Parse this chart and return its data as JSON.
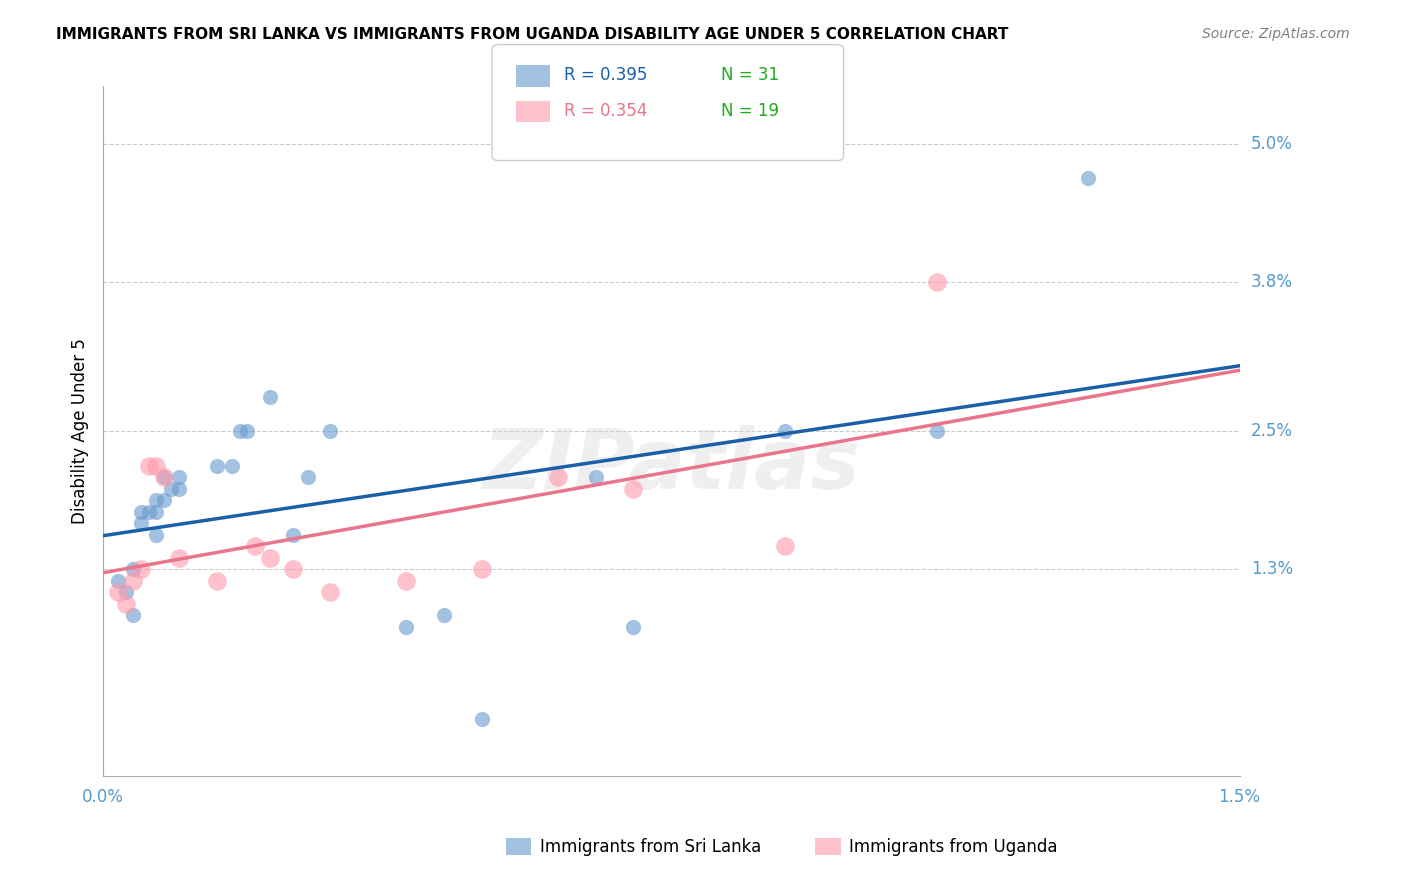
{
  "title": "IMMIGRANTS FROM SRI LANKA VS IMMIGRANTS FROM UGANDA DISABILITY AGE UNDER 5 CORRELATION CHART",
  "source": "Source: ZipAtlas.com",
  "ylabel": "Disability Age Under 5",
  "xlabel_bottom_left": "0.0%",
  "xlabel_bottom_right": "1.5%",
  "y_tick_labels": [
    "5.0%",
    "3.8%",
    "2.5%",
    "1.3%"
  ],
  "y_tick_values": [
    0.05,
    0.038,
    0.025,
    0.013
  ],
  "x_min": 0.0,
  "x_max": 0.015,
  "y_min": -0.005,
  "y_max": 0.055,
  "sri_lanka_color": "#6699cc",
  "uganda_color": "#ff99aa",
  "sri_lanka_line_color": "#1a5fa8",
  "uganda_line_color": "#e8758a",
  "legend_R1": "R = 0.395",
  "legend_N1": "N = 31",
  "legend_R2": "R = 0.354",
  "legend_N2": "N = 19",
  "watermark": "ZIPatlas",
  "sri_lanka_x": [
    0.0002,
    0.0003,
    0.0004,
    0.0004,
    0.0005,
    0.0005,
    0.0006,
    0.0007,
    0.0007,
    0.0007,
    0.0008,
    0.0008,
    0.0009,
    0.001,
    0.001,
    0.0015,
    0.0017,
    0.0018,
    0.0019,
    0.0022,
    0.0025,
    0.0027,
    0.003,
    0.004,
    0.0045,
    0.005,
    0.0065,
    0.007,
    0.009,
    0.011,
    0.013
  ],
  "sri_lanka_y": [
    0.012,
    0.011,
    0.013,
    0.009,
    0.018,
    0.017,
    0.018,
    0.019,
    0.018,
    0.016,
    0.021,
    0.019,
    0.02,
    0.02,
    0.021,
    0.022,
    0.022,
    0.025,
    0.025,
    0.028,
    0.016,
    0.021,
    0.025,
    0.008,
    0.009,
    0.0,
    0.021,
    0.008,
    0.025,
    0.025,
    0.047
  ],
  "uganda_x": [
    0.0002,
    0.0003,
    0.0004,
    0.0005,
    0.0006,
    0.0007,
    0.0008,
    0.001,
    0.0015,
    0.002,
    0.0022,
    0.0025,
    0.003,
    0.004,
    0.005,
    0.006,
    0.007,
    0.009,
    0.011
  ],
  "uganda_y": [
    0.011,
    0.01,
    0.012,
    0.013,
    0.022,
    0.022,
    0.021,
    0.014,
    0.012,
    0.015,
    0.014,
    0.013,
    0.011,
    0.012,
    0.013,
    0.021,
    0.02,
    0.015,
    0.038
  ],
  "sri_lanka_marker_size": 120,
  "uganda_marker_size": 180,
  "grid_color": "#cccccc",
  "background_color": "#ffffff",
  "title_fontsize": 11,
  "tick_label_color": "#5599cc",
  "green_color": "#22aa22"
}
